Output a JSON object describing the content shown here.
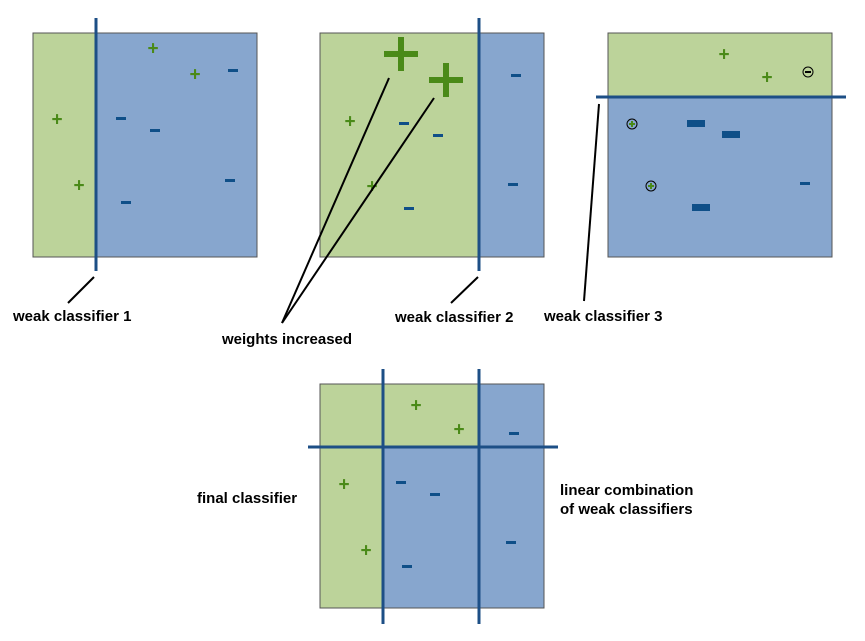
{
  "labels": {
    "weak1": "weak classifier 1",
    "weak2": "weak classifier 2",
    "weak3": "weak classifier 3",
    "weights": "weights increased",
    "final": "final classifier",
    "linear_line1": "linear combination",
    "linear_line2": "of weak classifiers"
  },
  "colors": {
    "positive_region": "#bcd39a",
    "negative_region": "#87a6ce",
    "border": "#555555",
    "boundary": "#1d4f86",
    "plus": "#4a8a18",
    "minus": "#0f4f88",
    "pointer": "#000000"
  },
  "glyphs": {
    "plus": "+",
    "minus": "−",
    "circled_plus": "⊕",
    "circled_minus": "⊖"
  }
}
